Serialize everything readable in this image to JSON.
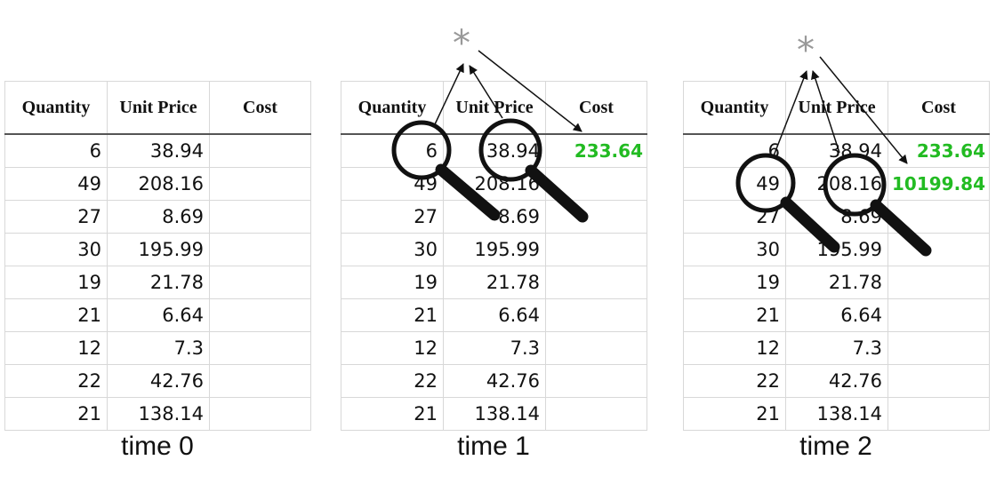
{
  "headers": [
    "Quantity",
    "Unit Price",
    "Cost"
  ],
  "panels": [
    {
      "caption": "time 0",
      "rows": [
        [
          "6",
          "38.94",
          ""
        ],
        [
          "49",
          "208.16",
          ""
        ],
        [
          "27",
          "8.69",
          ""
        ],
        [
          "30",
          "195.99",
          ""
        ],
        [
          "19",
          "21.78",
          ""
        ],
        [
          "21",
          "6.64",
          ""
        ],
        [
          "12",
          "7.3",
          ""
        ],
        [
          "22",
          "42.76",
          ""
        ],
        [
          "21",
          "138.14",
          ""
        ]
      ]
    },
    {
      "caption": "time 1",
      "rows": [
        [
          "6",
          "38.94",
          "233.64"
        ],
        [
          "49",
          "208.16",
          ""
        ],
        [
          "27",
          "8.69",
          ""
        ],
        [
          "30",
          "195.99",
          ""
        ],
        [
          "19",
          "21.78",
          ""
        ],
        [
          "21",
          "6.64",
          ""
        ],
        [
          "12",
          "7.3",
          ""
        ],
        [
          "22",
          "42.76",
          ""
        ],
        [
          "21",
          "138.14",
          ""
        ]
      ]
    },
    {
      "caption": "time 2",
      "rows": [
        [
          "6",
          "38.94",
          "233.64"
        ],
        [
          "49",
          "208.16",
          "10199.84"
        ],
        [
          "27",
          "8.69",
          ""
        ],
        [
          "30",
          "195.99",
          ""
        ],
        [
          "19",
          "21.78",
          ""
        ],
        [
          "21",
          "6.64",
          ""
        ],
        [
          "12",
          "7.3",
          ""
        ],
        [
          "22",
          "42.76",
          ""
        ],
        [
          "21",
          "138.14",
          ""
        ]
      ]
    }
  ],
  "operator_symbol": "*",
  "icons": [
    "magnifier-icon"
  ],
  "colors": {
    "result_text": "#22bb22",
    "operator": "#999999"
  }
}
